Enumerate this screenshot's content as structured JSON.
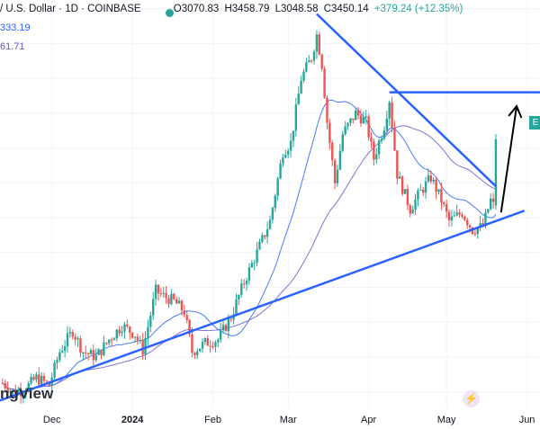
{
  "header": {
    "symbol": "/ U.S. Dollar · 1D · COINBASE",
    "open": "O3070.83",
    "high": "H3458.79",
    "low": "L3048.58",
    "close": "C3450.14",
    "change": "+379.24 (+12.35%)"
  },
  "ma_values": {
    "fast": "333.19",
    "slow": "61.71"
  },
  "watermark": "ngView",
  "price_tag": "E",
  "colors": {
    "up": "#26a69a",
    "down": "#ef5350",
    "trend": "#2962ff",
    "ma_fast": "#2962ff",
    "ma_slow": "#6a5acd",
    "arrow": "#000000"
  },
  "chart_data": {
    "type": "candlestick",
    "title": "",
    "x_ticks": [
      {
        "label": "Dec",
        "date": "2023-12-01",
        "bold": false
      },
      {
        "label": "2024",
        "date": "2024-01-01",
        "bold": true
      },
      {
        "label": "Feb",
        "date": "2024-02-01",
        "bold": false
      },
      {
        "label": "Mar",
        "date": "2024-03-01",
        "bold": false
      },
      {
        "label": "Apr",
        "date": "2024-04-01",
        "bold": false
      },
      {
        "label": "May",
        "date": "2024-05-01",
        "bold": false
      },
      {
        "label": "Jun",
        "date": "2024-06-01",
        "bold": false
      }
    ],
    "x_range": [
      "2023-11-11",
      "2024-06-06"
    ],
    "y_range": [
      1900,
      4250
    ],
    "y_scale": "linear",
    "grid": true,
    "close_series": [
      [
        "2023-11-12",
        2050
      ],
      [
        "2023-11-16",
        2000
      ],
      [
        "2023-11-20",
        2010
      ],
      [
        "2023-11-25",
        2080
      ],
      [
        "2023-11-30",
        2040
      ],
      [
        "2023-12-04",
        2230
      ],
      [
        "2023-12-09",
        2350
      ],
      [
        "2023-12-13",
        2230
      ],
      [
        "2023-12-18",
        2200
      ],
      [
        "2023-12-23",
        2300
      ],
      [
        "2023-12-28",
        2380
      ],
      [
        "2024-01-02",
        2330
      ],
      [
        "2024-01-05",
        2240
      ],
      [
        "2024-01-10",
        2580
      ],
      [
        "2024-01-13",
        2550
      ],
      [
        "2024-01-17",
        2520
      ],
      [
        "2024-01-21",
        2460
      ],
      [
        "2024-01-24",
        2230
      ],
      [
        "2024-01-29",
        2280
      ],
      [
        "2024-02-03",
        2300
      ],
      [
        "2024-02-08",
        2430
      ],
      [
        "2024-02-13",
        2630
      ],
      [
        "2024-02-18",
        2800
      ],
      [
        "2024-02-23",
        2980
      ],
      [
        "2024-02-28",
        3380
      ],
      [
        "2024-03-02",
        3430
      ],
      [
        "2024-03-06",
        3800
      ],
      [
        "2024-03-10",
        3920
      ],
      [
        "2024-03-12",
        4050
      ],
      [
        "2024-03-14",
        3880
      ],
      [
        "2024-03-16",
        3550
      ],
      [
        "2024-03-19",
        3200
      ],
      [
        "2024-03-22",
        3480
      ],
      [
        "2024-03-27",
        3600
      ],
      [
        "2024-03-31",
        3550
      ],
      [
        "2024-04-03",
        3340
      ],
      [
        "2024-04-07",
        3530
      ],
      [
        "2024-04-09",
        3680
      ],
      [
        "2024-04-12",
        3250
      ],
      [
        "2024-04-17",
        3050
      ],
      [
        "2024-04-21",
        3150
      ],
      [
        "2024-04-25",
        3230
      ],
      [
        "2024-04-29",
        3100
      ],
      [
        "2024-05-02",
        2980
      ],
      [
        "2024-05-07",
        3030
      ],
      [
        "2024-05-11",
        2930
      ],
      [
        "2024-05-15",
        2950
      ],
      [
        "2024-05-18",
        3100
      ],
      [
        "2024-05-19",
        3070
      ],
      [
        "2024-05-20",
        3450
      ]
    ],
    "series": [
      {
        "values": "close_series",
        "style": "candles"
      },
      {
        "values": "ma_fast",
        "style": "line"
      },
      {
        "values": "ma_slow",
        "style": "line"
      }
    ],
    "annotations": [
      {
        "type": "trendline",
        "from": [
          "2024-03-12",
          4170
        ],
        "to": [
          "2024-05-20",
          3180
        ]
      },
      {
        "type": "trendline",
        "from": [
          "2023-11-11",
          1950
        ],
        "to": [
          "2024-05-31",
          3040
        ]
      },
      {
        "type": "hline",
        "from": [
          "2024-04-09",
          3720
        ],
        "to": [
          "2024-06-06",
          3720
        ]
      },
      {
        "type": "arrow",
        "from": [
          "2024-05-22",
          3030
        ],
        "to": [
          "2024-05-28",
          3640
        ]
      }
    ]
  }
}
